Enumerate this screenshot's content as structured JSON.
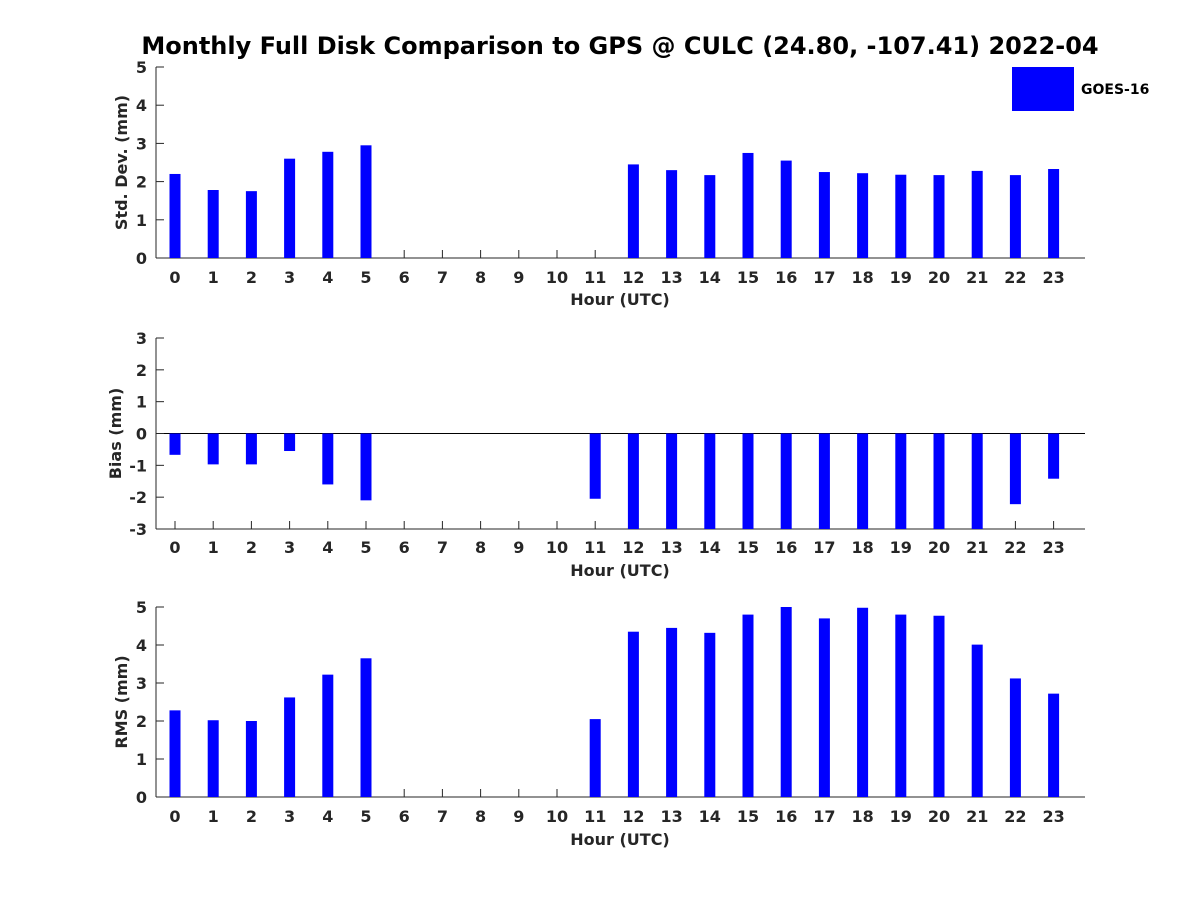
{
  "chart_data": {
    "title": "Monthly Full Disk Comparison to GPS @ CULC (24.80, -107.41) 2022-04",
    "type": "bar",
    "legend": {
      "entries": [
        "GOES-16"
      ],
      "position": "top-right",
      "colors": [
        "#0000ff"
      ]
    },
    "bar_color": "#0000ff",
    "categories": [
      "0",
      "1",
      "2",
      "3",
      "4",
      "5",
      "6",
      "7",
      "8",
      "9",
      "10",
      "11",
      "12",
      "13",
      "14",
      "15",
      "16",
      "17",
      "18",
      "19",
      "20",
      "21",
      "22",
      "23"
    ],
    "panels": [
      {
        "name": "std-dev",
        "ylabel": "Std. Dev. (mm)",
        "xlabel": "Hour (UTC)",
        "ylim": [
          0,
          5
        ],
        "yticks": [
          "0",
          "1",
          "2",
          "3",
          "4",
          "5"
        ],
        "values": [
          2.2,
          1.78,
          1.75,
          2.6,
          2.78,
          2.95,
          null,
          null,
          null,
          null,
          null,
          null,
          2.45,
          2.3,
          2.17,
          2.75,
          2.55,
          2.25,
          2.22,
          2.18,
          2.17,
          2.28,
          2.17,
          2.33
        ]
      },
      {
        "name": "bias",
        "ylabel": "Bias (mm)",
        "xlabel": "Hour (UTC)",
        "ylim": [
          -3,
          3
        ],
        "yticks": [
          "-3",
          "-2",
          "-1",
          "0",
          "1",
          "2",
          "3"
        ],
        "values": [
          -0.67,
          -0.97,
          -0.97,
          -0.55,
          -1.6,
          -2.1,
          null,
          null,
          null,
          null,
          null,
          -2.05,
          -3.0,
          -3.0,
          -3.0,
          -3.0,
          -3.0,
          -3.0,
          -3.0,
          -3.0,
          -3.0,
          -3.0,
          -2.22,
          -1.42
        ]
      },
      {
        "name": "rms",
        "ylabel": "RMS (mm)",
        "xlabel": "Hour (UTC)",
        "ylim": [
          0,
          5
        ],
        "yticks": [
          "0",
          "1",
          "2",
          "3",
          "4",
          "5"
        ],
        "values": [
          2.28,
          2.02,
          2.0,
          2.62,
          3.22,
          3.65,
          null,
          null,
          null,
          null,
          null,
          2.05,
          4.35,
          4.45,
          4.32,
          4.8,
          5.0,
          4.7,
          4.98,
          4.8,
          4.77,
          4.01,
          3.12,
          2.72
        ]
      }
    ]
  }
}
